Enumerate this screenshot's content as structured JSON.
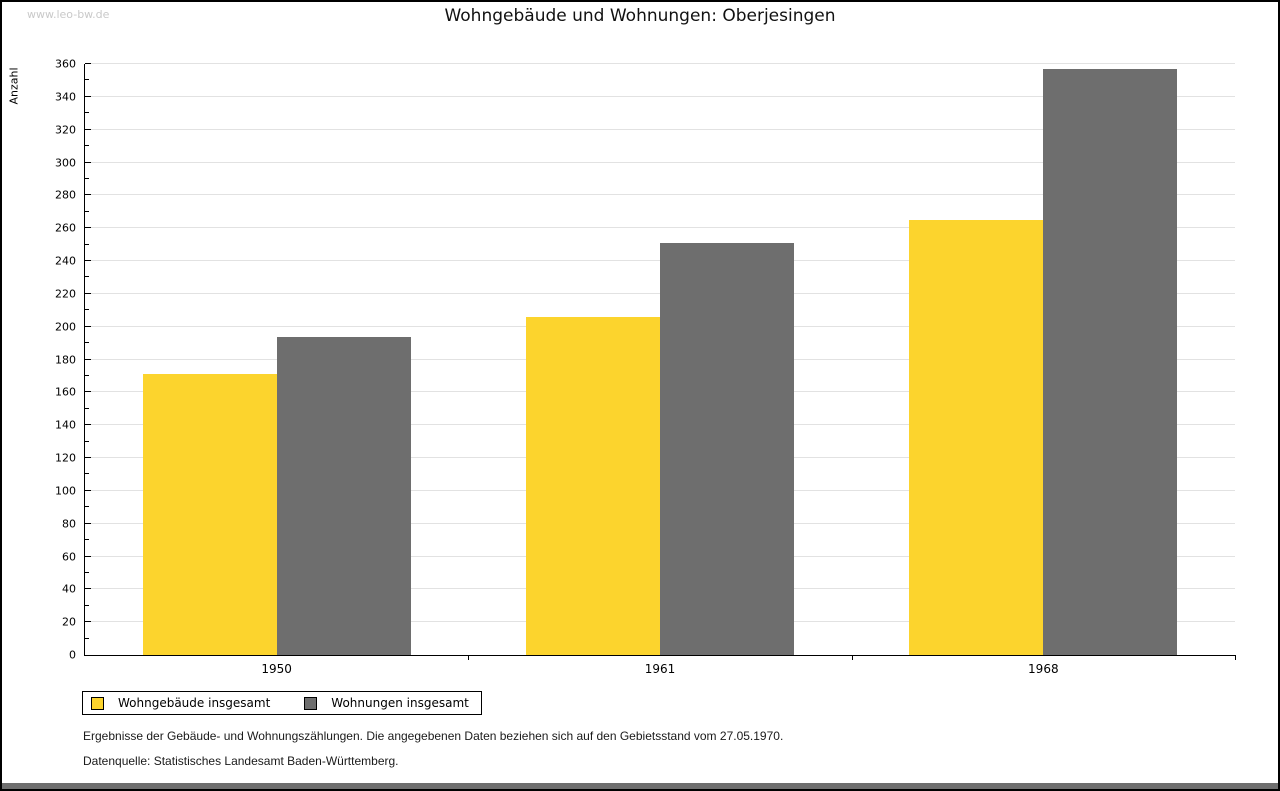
{
  "watermark": "www.leo-bw.de",
  "header": {
    "title": "Wohngebäude und Wohnungen: Oberjesingen"
  },
  "chart_data": {
    "type": "bar",
    "title": "Wohngebäude und Wohnungen: Oberjesingen",
    "xlabel": "",
    "ylabel": "Anzahl",
    "categories": [
      "1950",
      "1961",
      "1968"
    ],
    "series": [
      {
        "name": "Wohngebäude insgesamt",
        "color": "#FCD42D",
        "values": [
          171,
          206,
          265
        ]
      },
      {
        "name": "Wohnungen insgesamt",
        "color": "#6E6E6E",
        "values": [
          194,
          251,
          357
        ]
      }
    ],
    "ylim": [
      0,
      360
    ],
    "ytick_major": 20,
    "ytick_minor": 10,
    "grid": true,
    "legend_position": "bottom-left"
  },
  "legend": {
    "items": [
      {
        "label": "Wohngebäude insgesamt",
        "color": "#FCD42D"
      },
      {
        "label": "Wohnungen insgesamt",
        "color": "#6E6E6E"
      }
    ]
  },
  "footer": {
    "line1": "Ergebnisse der Gebäude- und Wohnungszählungen. Die angegebenen Daten beziehen sich auf den Gebietsstand vom 27.05.1970.",
    "line2": "Datenquelle: Statistisches Landesamt Baden-Württemberg."
  },
  "colors": {
    "bar_yellow": "#FCD42D",
    "bar_gray": "#6E6E6E",
    "gridline": "#E2E2E2",
    "watermark": "#C9C9C9",
    "footer_bar": "#6E6E6E",
    "frame_border": "#000000"
  }
}
